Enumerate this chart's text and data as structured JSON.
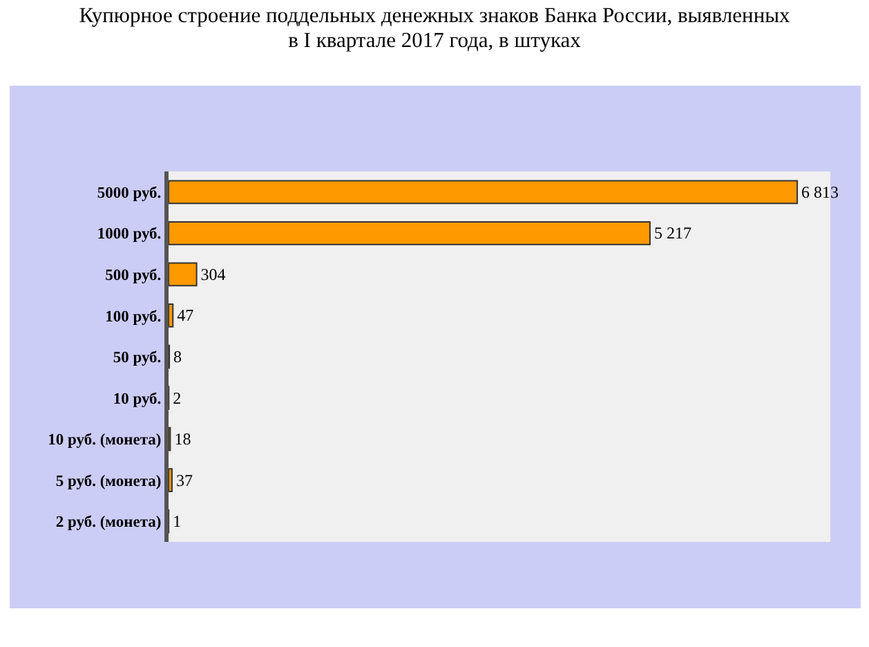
{
  "chart_data": {
    "type": "bar",
    "orientation": "horizontal",
    "title": "Купюрное строение поддельных денежных знаков Банка России, выявленных\nв I квартале 2017 года, в штуках",
    "categories": [
      "5000 руб.",
      "1000 руб.",
      "500 руб.",
      "100 руб.",
      "50 руб.",
      "10 руб.",
      "10 руб. (монета)",
      "5 руб. (монета)",
      "2 руб. (монета)"
    ],
    "values": [
      6813,
      5217,
      304,
      47,
      8,
      2,
      18,
      37,
      1
    ],
    "value_labels": [
      "6 813",
      "5 217",
      "304",
      "47",
      "8",
      "2",
      "18",
      "37",
      "1"
    ],
    "color": "#ff9900",
    "grid": false,
    "legend": false
  }
}
